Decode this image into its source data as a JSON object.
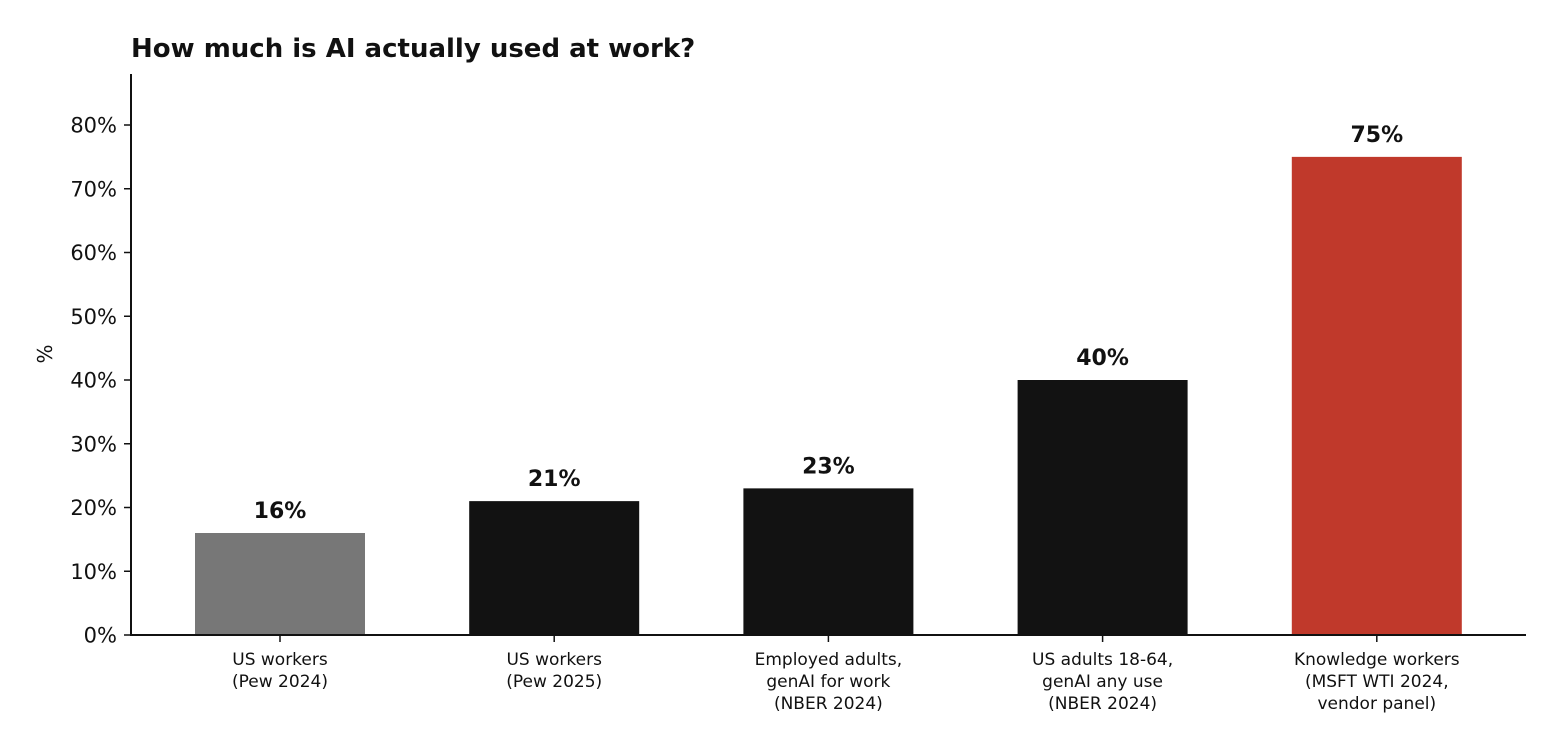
{
  "chart_data": {
    "type": "bar",
    "title": "How much is AI actually used at work?",
    "ylabel": "%",
    "xlabel": "",
    "ylim": [
      0,
      88
    ],
    "yticks": [
      0,
      10,
      20,
      30,
      40,
      50,
      60,
      70,
      80
    ],
    "ytick_labels": [
      "0%",
      "10%",
      "20%",
      "30%",
      "40%",
      "50%",
      "60%",
      "70%",
      "80%"
    ],
    "grid": false,
    "categories": [
      [
        "US workers",
        "(Pew 2024)"
      ],
      [
        "US workers",
        "(Pew 2025)"
      ],
      [
        "Employed adults,",
        "genAI for work",
        "(NBER 2024)"
      ],
      [
        "US adults 18-64,",
        "genAI any use",
        "(NBER 2024)"
      ],
      [
        "Knowledge workers",
        "(MSFT WTI 2024,",
        "vendor panel)"
      ]
    ],
    "values": [
      16,
      21,
      23,
      40,
      75
    ],
    "data_labels": [
      "16%",
      "21%",
      "23%",
      "40%",
      "75%"
    ],
    "colors": [
      "#777777",
      "#121212",
      "#121212",
      "#121212",
      "#c0392b"
    ]
  }
}
